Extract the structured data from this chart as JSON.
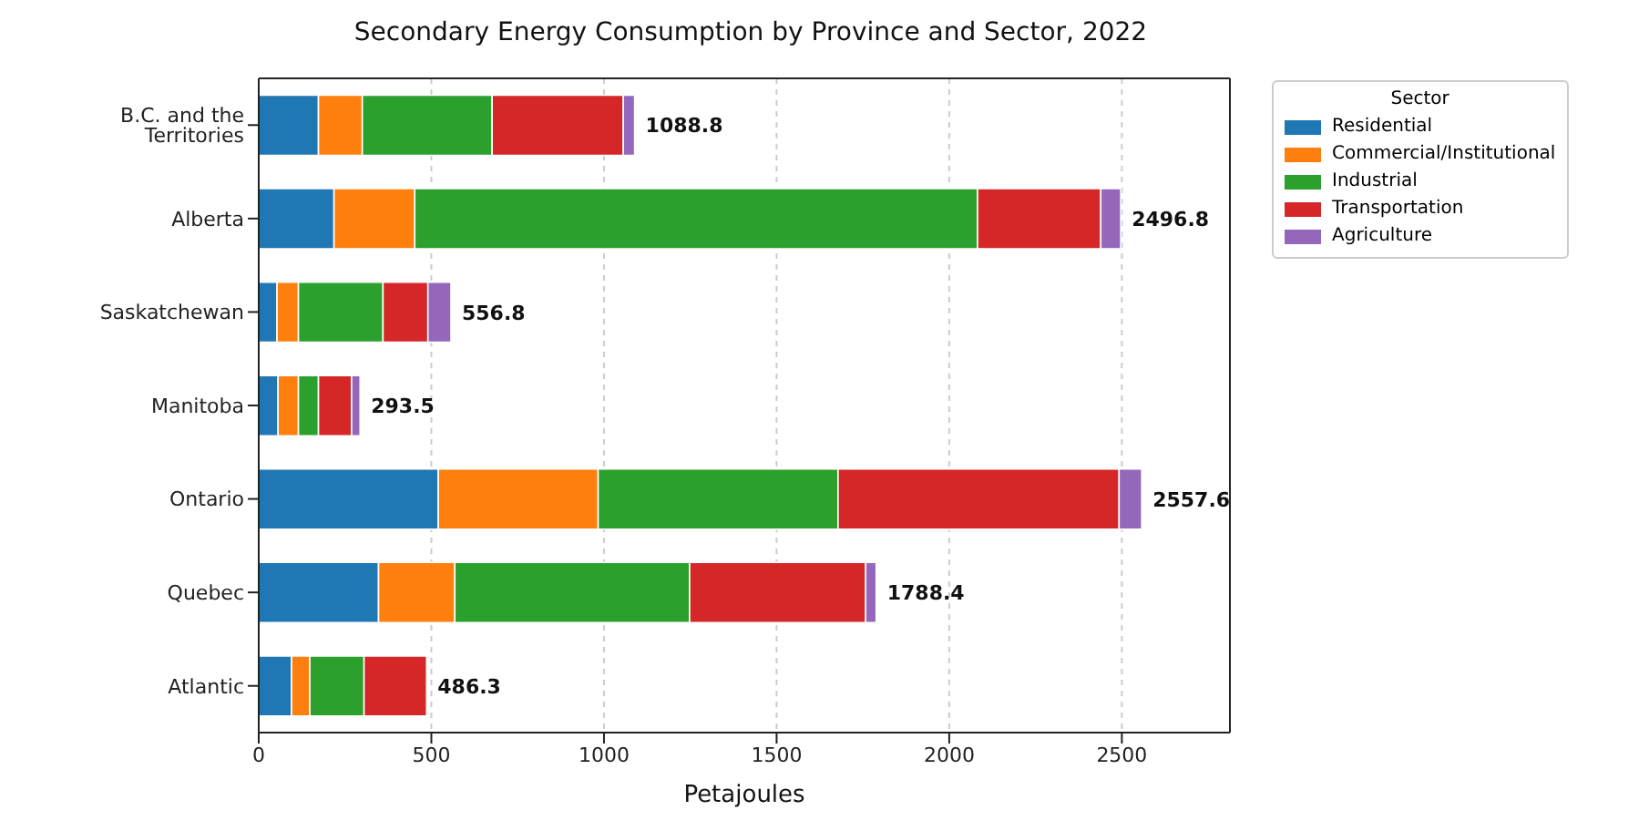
{
  "chart_data": {
    "type": "bar",
    "orientation": "horizontal",
    "stacked": true,
    "title": "Secondary Energy Consumption by Province and Sector, 2022",
    "xlabel": "Petajoules",
    "legend_title": "Sector",
    "legend": "top right",
    "grid": "x",
    "categories": [
      "B.C. and the Territories",
      "Alberta",
      "Saskatchewan",
      "Manitoba",
      "Ontario",
      "Quebec",
      "Atlantic"
    ],
    "xlim": [
      0,
      2813
    ],
    "xticks": [
      0,
      500,
      1000,
      1500,
      2000,
      2500
    ],
    "series": [
      {
        "name": "Residential",
        "color": "#1f77b4",
        "values": [
          173,
          218,
          53,
          56,
          520,
          347,
          95
        ]
      },
      {
        "name": "Commercial/Institutional",
        "color": "#ff7f0e",
        "values": [
          127,
          234,
          62,
          59,
          463,
          221,
          53
        ]
      },
      {
        "name": "Industrial",
        "color": "#2ca02c",
        "values": [
          376,
          1630,
          245,
          58,
          695,
          680,
          157
        ]
      },
      {
        "name": "Transportation",
        "color": "#d62728",
        "values": [
          380,
          357,
          130,
          96,
          814,
          510,
          181.3
        ]
      },
      {
        "name": "Agriculture",
        "color": "#9467bd",
        "values": [
          32.8,
          57.8,
          66.8,
          24.5,
          65.6,
          30.4,
          0
        ]
      }
    ],
    "totals": [
      "1088.8",
      "2496.8",
      "556.8",
      "293.5",
      "2557.6",
      "1788.4",
      "486.3"
    ]
  }
}
